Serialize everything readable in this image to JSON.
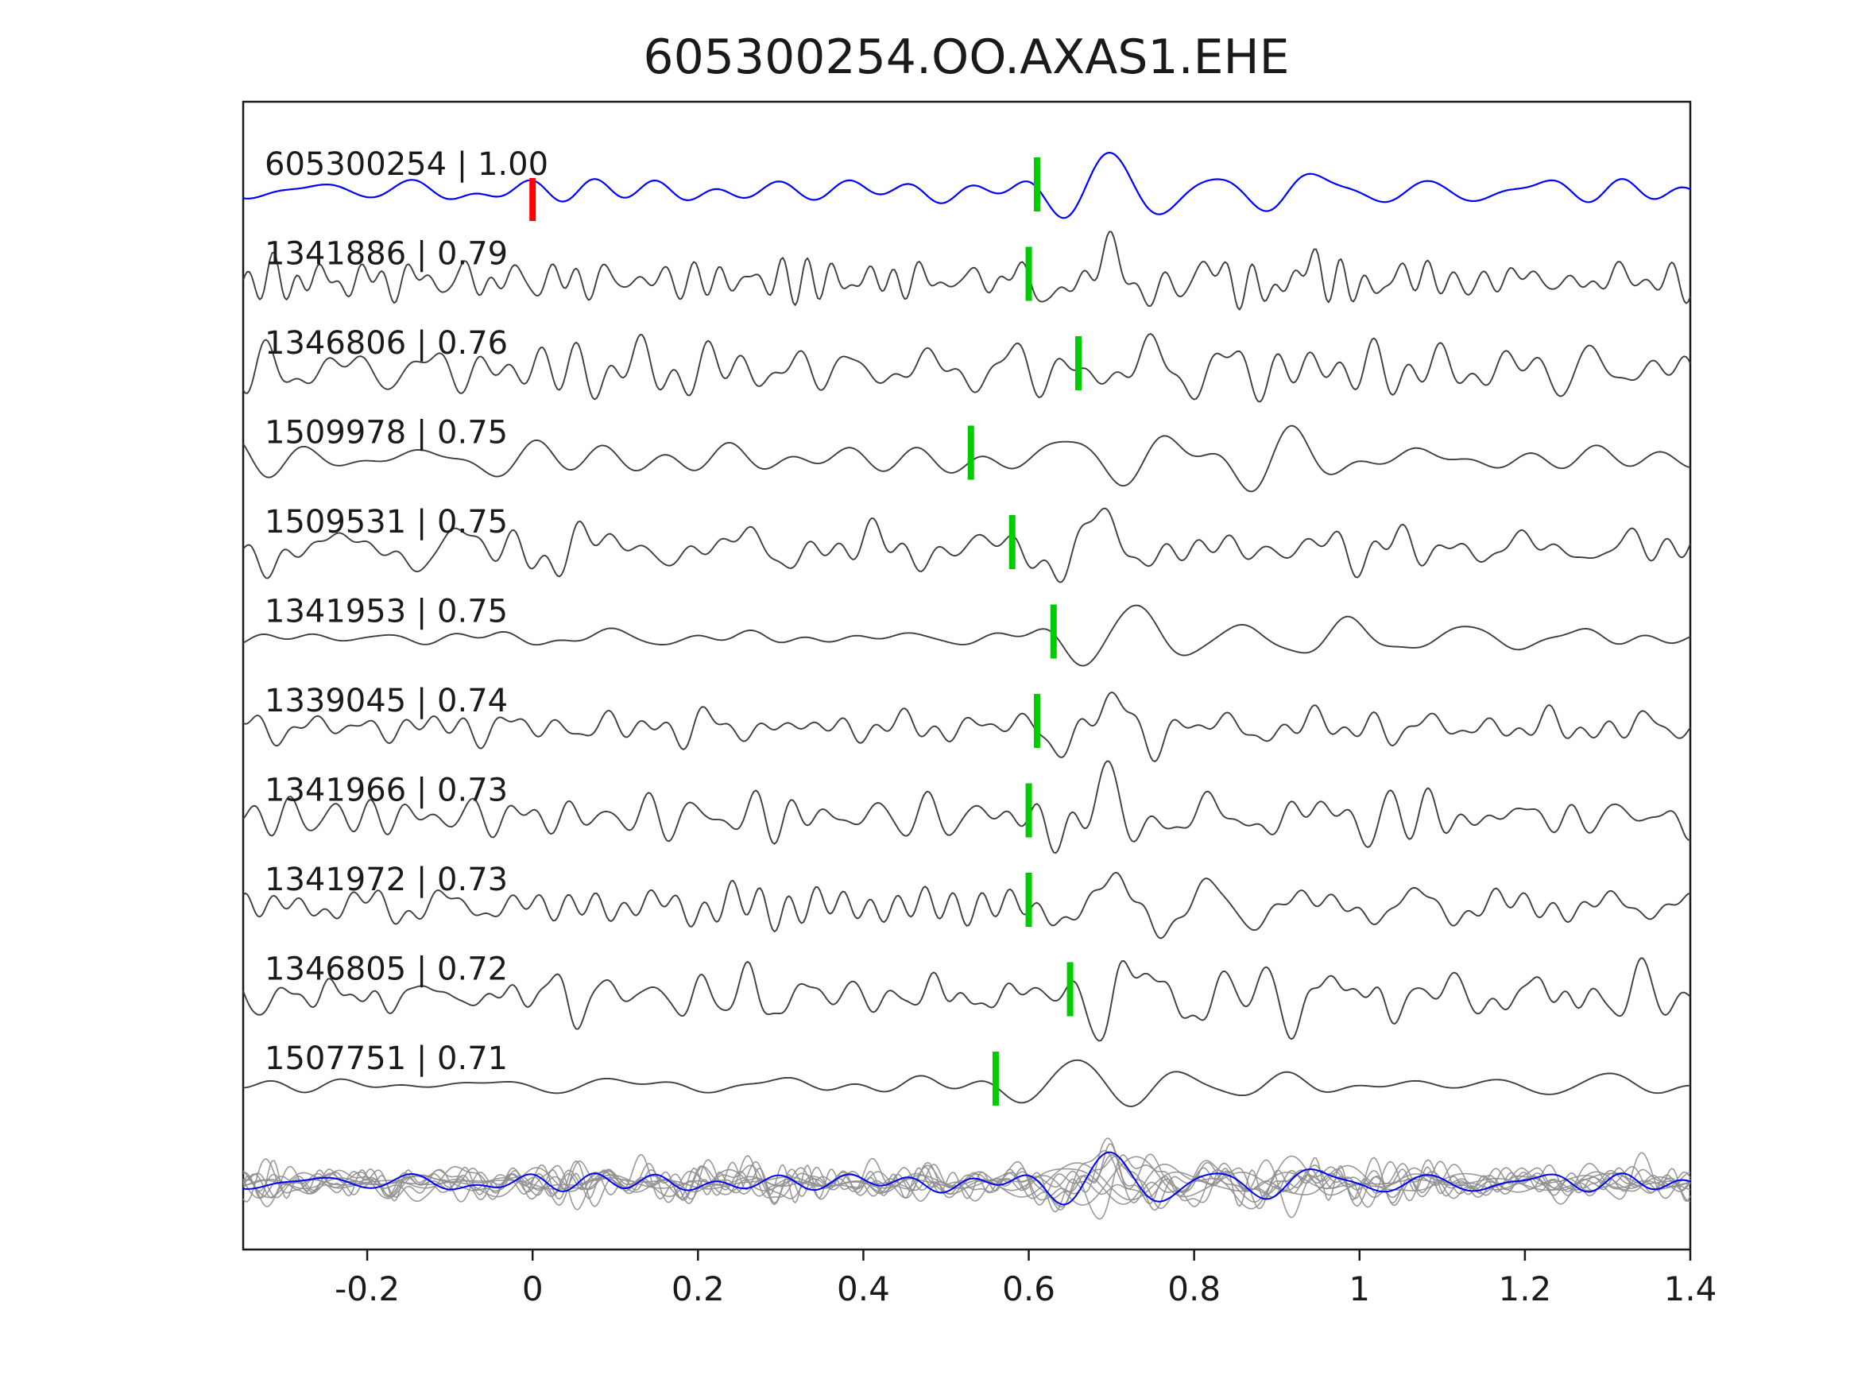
{
  "title": "605300254.OO.AXAS1.EHE",
  "chart_data": {
    "type": "line",
    "title": "605300254.OO.AXAS1.EHE",
    "description": "Template seismic waveform (blue) and top cross-correlation matched event waveforms (dark gray), each labeled 'event_id | correlation'. Green ticks mark pick times, red tick marks template origin at 0. Bottom row overlays all matched traces (gray) with the template (blue).",
    "xlim": [
      -0.35,
      1.4
    ],
    "x_ticks": [
      {
        "value": -0.2,
        "label": "-0.2"
      },
      {
        "value": 0.0,
        "label": "0"
      },
      {
        "value": 0.2,
        "label": "0.2"
      },
      {
        "value": 0.4,
        "label": "0.4"
      },
      {
        "value": 0.6,
        "label": "0.6"
      },
      {
        "value": 0.8,
        "label": "0.8"
      },
      {
        "value": 1.0,
        "label": "1"
      },
      {
        "value": 1.2,
        "label": "1.2"
      },
      {
        "value": 1.4,
        "label": "1.4"
      }
    ],
    "grid": false,
    "legend": false,
    "colors": {
      "template": "#0000ff",
      "match": "#3f3f3f",
      "pick_marker": "#00cc00",
      "template_marker": "#ff0000",
      "overlay": "#8f8f8f",
      "axis": "#1a1a1a",
      "text": "#1a1a1a",
      "background": "#ffffff"
    },
    "traces": [
      {
        "id": "605300254",
        "corr": "1.00",
        "label": "605300254 | 1.00",
        "role": "template",
        "pick": 0.61,
        "template_marker_x": 0.0,
        "noise_amp": 7,
        "noise_freq": 13,
        "arr_amp": 36,
        "arr_freq": 8.0,
        "seed": 7
      },
      {
        "id": "1341886",
        "corr": "0.79",
        "label": "1341886 | 0.79",
        "role": "match",
        "pick": 0.6,
        "noise_amp": 13,
        "noise_freq": 30,
        "arr_amp": 33,
        "arr_freq": 8.0,
        "seed": 12
      },
      {
        "id": "1346806",
        "corr": "0.76",
        "label": "1346806 | 0.76",
        "role": "match",
        "pick": 0.66,
        "noise_amp": 16,
        "noise_freq": 33,
        "arr_amp": 24,
        "arr_freq": 8.5,
        "seed": 23
      },
      {
        "id": "1509978",
        "corr": "0.75",
        "label": "1509978 | 0.75",
        "role": "match",
        "pick": 0.53,
        "noise_amp": 12,
        "noise_freq": 15,
        "arr_amp": 40,
        "arr_freq": 7.0,
        "seed": 34
      },
      {
        "id": "1509531",
        "corr": "0.75",
        "label": "1509531 | 0.75",
        "role": "match",
        "pick": 0.58,
        "noise_amp": 15,
        "noise_freq": 22,
        "arr_amp": 38,
        "arr_freq": 7.5,
        "seed": 45
      },
      {
        "id": "1341953",
        "corr": "0.75",
        "label": "1341953 | 0.75",
        "role": "match",
        "pick": 0.63,
        "noise_amp": 5,
        "noise_freq": 14,
        "arr_amp": 42,
        "arr_freq": 7.5,
        "seed": 56
      },
      {
        "id": "1339045",
        "corr": "0.74",
        "label": "1339045 | 0.74",
        "role": "match",
        "pick": 0.61,
        "noise_amp": 11,
        "noise_freq": 22,
        "arr_amp": 36,
        "arr_freq": 8.0,
        "seed": 67
      },
      {
        "id": "1341966",
        "corr": "0.73",
        "label": "1341966 | 0.73",
        "role": "match",
        "pick": 0.6,
        "noise_amp": 13,
        "noise_freq": 26,
        "arr_amp": 38,
        "arr_freq": 8.0,
        "seed": 78
      },
      {
        "id": "1341972",
        "corr": "0.73",
        "label": "1341972 | 0.73",
        "role": "match",
        "pick": 0.6,
        "noise_amp": 12,
        "noise_freq": 25,
        "arr_amp": 36,
        "arr_freq": 8.0,
        "seed": 89
      },
      {
        "id": "1346805",
        "corr": "0.72",
        "label": "1346805 | 0.72",
        "role": "match",
        "pick": 0.65,
        "noise_amp": 15,
        "noise_freq": 28,
        "arr_amp": 32,
        "arr_freq": 8.2,
        "seed": 90
      },
      {
        "id": "1507751",
        "corr": "0.71",
        "label": "1507751 | 0.71",
        "role": "match",
        "pick": 0.56,
        "noise_amp": 5,
        "noise_freq": 15,
        "arr_amp": 34,
        "arr_freq": 7.8,
        "seed": 101
      }
    ],
    "overlay": {
      "scale": 0.8,
      "color": "#8f8f8f",
      "includes": "all matched traces plus template overlaid"
    }
  }
}
